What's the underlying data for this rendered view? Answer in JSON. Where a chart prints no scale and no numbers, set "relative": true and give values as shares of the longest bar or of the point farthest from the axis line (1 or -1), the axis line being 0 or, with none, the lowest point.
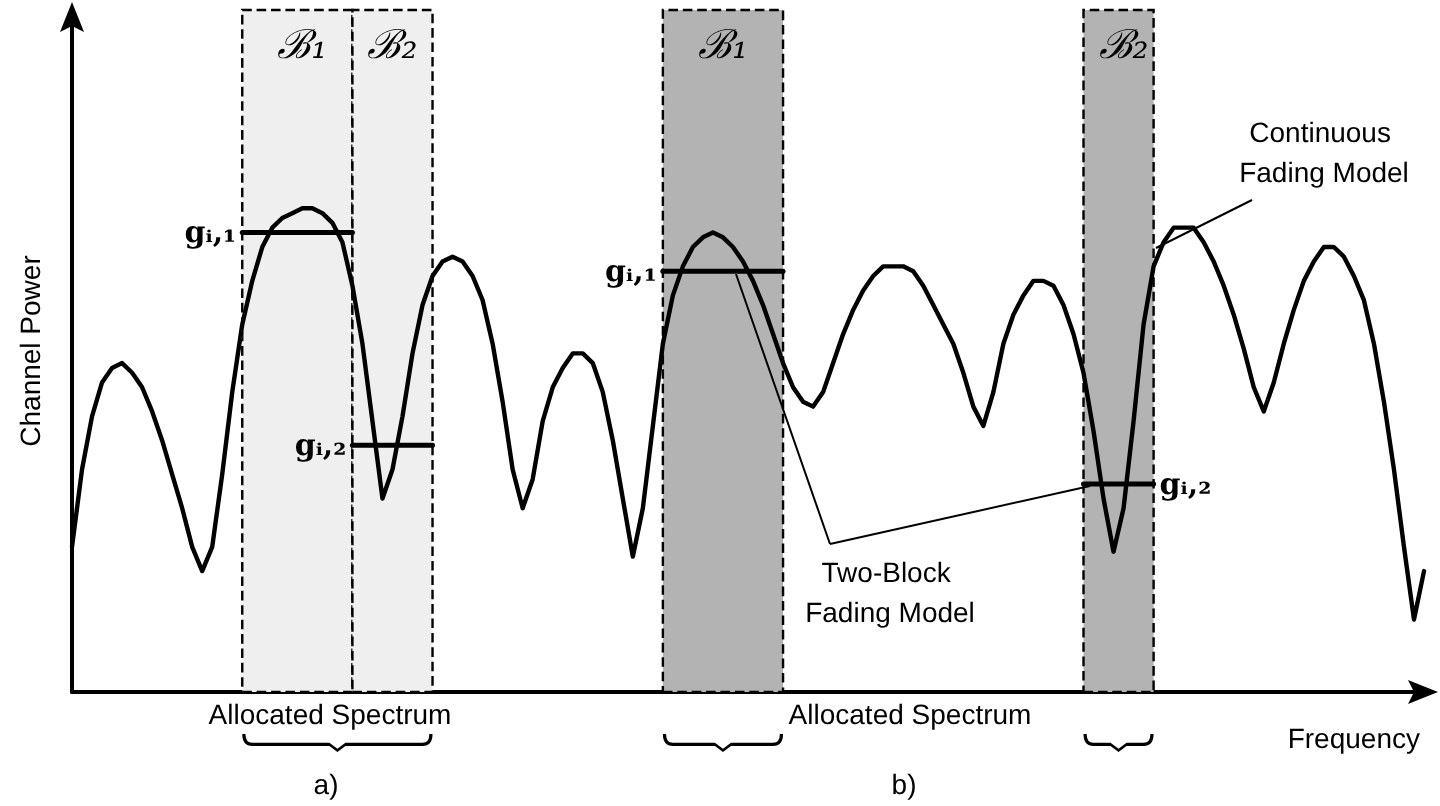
{
  "chart_data": {
    "type": "line",
    "relative": true,
    "xlabel": "Frequency",
    "ylabel": "Channel Power",
    "grid": false,
    "legend": false,
    "line_style": "solid",
    "categories": [
      null,
      null,
      null,
      null,
      null,
      null,
      null,
      null,
      null,
      null,
      null,
      null,
      null,
      null,
      null,
      null,
      null,
      null,
      null,
      null,
      null,
      null,
      null,
      null,
      null,
      null,
      null,
      null,
      null,
      null,
      null,
      null,
      null,
      null,
      null,
      null,
      null,
      null,
      null,
      null,
      null,
      null,
      null,
      null,
      null,
      null,
      null,
      null,
      null,
      null,
      null,
      null,
      null,
      null,
      null,
      null,
      null,
      null,
      null,
      null,
      null,
      null,
      null,
      null,
      null,
      null,
      null,
      null,
      null,
      null,
      null,
      null,
      null,
      null,
      null,
      null,
      null,
      null,
      null,
      null,
      null,
      null,
      null,
      null,
      null,
      null,
      null,
      null,
      null,
      null,
      null,
      null,
      null,
      null,
      null,
      null,
      null,
      null,
      null,
      null,
      null,
      null,
      null,
      null,
      null,
      null,
      null,
      null,
      null,
      null,
      null,
      null,
      null,
      null,
      null,
      null,
      null,
      null,
      null,
      null,
      null,
      null,
      null,
      null,
      null,
      null,
      null,
      null,
      null,
      null,
      null,
      null,
      null,
      null,
      null,
      null
    ],
    "series": [
      {
        "color": "#000000",
        "values": [
          0.3,
          0.46,
          0.57,
          0.64,
          0.67,
          0.68,
          0.66,
          0.63,
          0.58,
          0.52,
          0.45,
          0.38,
          0.3,
          0.25,
          0.3,
          0.45,
          0.62,
          0.76,
          0.85,
          0.92,
          0.96,
          0.98,
          0.99,
          1.0,
          1.0,
          0.99,
          0.97,
          0.93,
          0.84,
          0.72,
          0.56,
          0.4,
          0.46,
          0.57,
          0.7,
          0.8,
          0.86,
          0.89,
          0.9,
          0.89,
          0.86,
          0.81,
          0.72,
          0.6,
          0.46,
          0.38,
          0.44,
          0.56,
          0.63,
          0.67,
          0.7,
          0.7,
          0.68,
          0.62,
          0.52,
          0.4,
          0.28,
          0.38,
          0.55,
          0.72,
          0.82,
          0.88,
          0.92,
          0.94,
          0.95,
          0.94,
          0.92,
          0.89,
          0.85,
          0.8,
          0.74,
          0.68,
          0.63,
          0.6,
          0.59,
          0.62,
          0.68,
          0.74,
          0.79,
          0.83,
          0.86,
          0.88,
          0.88,
          0.88,
          0.87,
          0.84,
          0.8,
          0.76,
          0.72,
          0.66,
          0.59,
          0.55,
          0.62,
          0.72,
          0.78,
          0.82,
          0.85,
          0.85,
          0.84,
          0.8,
          0.74,
          0.66,
          0.54,
          0.4,
          0.29,
          0.38,
          0.56,
          0.76,
          0.88,
          0.93,
          0.96,
          0.96,
          0.96,
          0.93,
          0.89,
          0.84,
          0.78,
          0.71,
          0.63,
          0.58,
          0.64,
          0.72,
          0.79,
          0.85,
          0.89,
          0.92,
          0.92,
          0.9,
          0.86,
          0.81,
          0.72,
          0.6,
          0.46,
          0.3,
          0.15,
          0.25
        ]
      },
      {
        "name": "gᵢ,₁",
        "color": "#000000",
        "values": [
          null,
          null,
          null,
          null,
          null,
          null,
          null,
          null,
          null,
          null,
          null,
          null,
          null,
          null,
          null,
          null,
          null,
          0.95,
          0.95,
          0.95,
          0.95,
          0.95,
          0.95,
          0.95,
          0.95,
          0.95,
          0.95,
          0.95,
          0.95,
          null,
          null,
          null,
          null,
          null,
          null,
          null,
          null,
          null,
          null,
          null,
          null,
          null,
          null,
          null,
          null,
          null,
          null,
          null,
          null,
          null,
          null,
          null,
          null,
          null,
          null,
          null,
          null,
          null,
          null,
          null,
          null,
          null,
          null,
          null,
          null,
          null,
          null,
          null,
          null,
          null,
          null,
          null,
          null,
          null,
          null,
          null,
          null,
          null,
          null,
          null,
          null,
          null,
          null,
          null,
          null,
          null,
          null,
          null,
          null,
          null,
          null,
          null,
          null,
          null,
          null,
          null,
          null,
          null,
          null,
          null,
          null,
          null,
          null,
          null,
          null,
          null,
          null,
          null,
          null,
          null,
          null,
          null,
          null,
          null,
          null,
          null,
          null,
          null,
          null,
          null,
          null,
          null,
          null,
          null,
          null,
          null,
          null,
          null,
          null,
          null,
          null,
          null,
          null,
          null,
          null,
          null
        ]
      },
      {
        "name": "gᵢ,₂",
        "color": "#000000",
        "values": [
          null,
          null,
          null,
          null,
          null,
          null,
          null,
          null,
          null,
          null,
          null,
          null,
          null,
          null,
          null,
          null,
          null,
          null,
          null,
          null,
          null,
          null,
          null,
          null,
          null,
          null,
          null,
          null,
          0.51,
          0.51,
          0.51,
          0.51,
          0.51,
          0.51,
          0.51,
          0.51,
          0.51,
          null,
          null,
          null,
          null,
          null,
          null,
          null,
          null,
          null,
          null,
          null,
          null,
          null,
          null,
          null,
          null,
          null,
          null,
          null,
          null,
          null,
          null,
          null,
          null,
          null,
          null,
          null,
          null,
          null,
          null,
          null,
          null,
          null,
          null,
          null,
          null,
          null,
          null,
          null,
          null,
          null,
          null,
          null,
          null,
          null,
          null,
          null,
          null,
          null,
          null,
          null,
          null,
          null,
          null,
          null,
          null,
          null,
          null,
          null,
          null,
          null,
          null,
          null,
          null,
          null,
          null,
          null,
          null,
          null,
          null,
          null,
          null,
          null,
          null,
          null,
          null,
          null,
          null,
          null,
          null,
          null,
          null,
          null,
          null,
          null,
          null,
          null,
          null,
          null,
          null,
          null,
          null,
          null,
          null,
          null,
          null,
          null,
          null,
          null
        ]
      },
      {
        "name": "gᵢ,₁",
        "color": "#000000",
        "values": [
          null,
          null,
          null,
          null,
          null,
          null,
          null,
          null,
          null,
          null,
          null,
          null,
          null,
          null,
          null,
          null,
          null,
          null,
          null,
          null,
          null,
          null,
          null,
          null,
          null,
          null,
          null,
          null,
          null,
          null,
          null,
          null,
          null,
          null,
          null,
          null,
          null,
          null,
          null,
          null,
          null,
          null,
          null,
          null,
          null,
          null,
          null,
          null,
          null,
          null,
          null,
          null,
          null,
          null,
          null,
          null,
          null,
          null,
          null,
          0.87,
          0.87,
          0.87,
          0.87,
          0.87,
          0.87,
          0.87,
          0.87,
          0.87,
          0.87,
          0.87,
          0.87,
          0.87,
          null,
          null,
          null,
          null,
          null,
          null,
          null,
          null,
          null,
          null,
          null,
          null,
          null,
          null,
          null,
          null,
          null,
          null,
          null,
          null,
          null,
          null,
          null,
          null,
          null,
          null,
          null,
          null,
          null,
          null,
          null,
          null,
          null,
          null,
          null,
          null,
          null,
          null,
          null,
          null,
          null,
          null,
          null,
          null,
          null,
          null,
          null,
          null,
          null,
          null,
          null,
          null,
          null,
          null,
          null,
          null,
          null,
          null,
          null,
          null,
          null,
          null,
          null,
          null
        ]
      },
      {
        "name": "gᵢ,₂",
        "color": "#000000",
        "values": [
          null,
          null,
          null,
          null,
          null,
          null,
          null,
          null,
          null,
          null,
          null,
          null,
          null,
          null,
          null,
          null,
          null,
          null,
          null,
          null,
          null,
          null,
          null,
          null,
          null,
          null,
          null,
          null,
          null,
          null,
          null,
          null,
          null,
          null,
          null,
          null,
          null,
          null,
          null,
          null,
          null,
          null,
          null,
          null,
          null,
          null,
          null,
          null,
          null,
          null,
          null,
          null,
          null,
          null,
          null,
          null,
          null,
          null,
          null,
          null,
          null,
          null,
          null,
          null,
          null,
          null,
          null,
          null,
          null,
          null,
          null,
          null,
          null,
          null,
          null,
          null,
          null,
          null,
          null,
          null,
          null,
          null,
          null,
          null,
          null,
          null,
          null,
          null,
          null,
          null,
          null,
          null,
          null,
          null,
          null,
          null,
          null,
          null,
          null,
          null,
          null,
          0.43,
          0.43,
          0.43,
          0.43,
          0.43,
          0.43,
          0.43,
          0.43,
          null,
          null,
          null,
          null,
          null,
          null,
          null,
          null,
          null,
          null,
          null,
          null,
          null,
          null,
          null,
          null,
          null,
          null,
          null,
          null,
          null,
          null,
          null,
          null,
          null,
          null,
          null
        ]
      }
    ],
    "annotations": [
      "ℬ₁",
      "ℬ₂",
      "ℬ₁",
      "ℬ₂",
      "Continuous Fading Model",
      "Two-Block Fading Model",
      "Allocated Spectrum",
      "a)",
      "Allocated Spectrum",
      "b)"
    ]
  }
}
